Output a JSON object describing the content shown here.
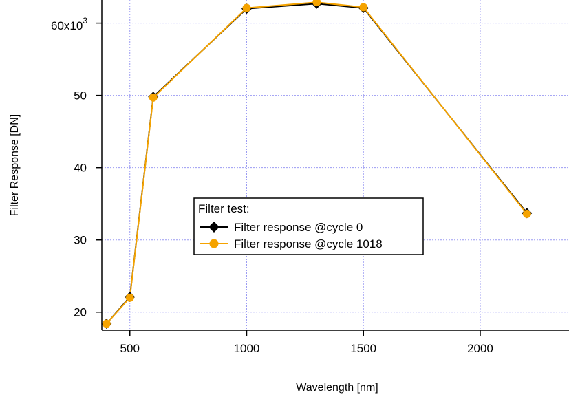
{
  "chart_data": {
    "type": "line",
    "xlabel": "Wavelength [nm]",
    "ylabel": "Filter Response [DN]",
    "xlim": [
      380,
      2380
    ],
    "ylim": [
      17.5,
      63.2
    ],
    "y_multiplier_label": "60x10",
    "y_multiplier_exponent": "3",
    "x_ticks": [
      {
        "value": 500,
        "label": "500"
      },
      {
        "value": 1000,
        "label": "1000"
      },
      {
        "value": 1500,
        "label": "1500"
      },
      {
        "value": 2000,
        "label": "2000"
      }
    ],
    "y_ticks": [
      {
        "value": 20,
        "label": "20"
      },
      {
        "value": 30,
        "label": "30"
      },
      {
        "value": 40,
        "label": "40"
      },
      {
        "value": 50,
        "label": "50"
      },
      {
        "value": 60,
        "label": ""
      }
    ],
    "grid": true,
    "legend": {
      "title": "Filter test:",
      "position": "center"
    },
    "series": [
      {
        "name": "Filter response @cycle 0",
        "color": "#000000",
        "marker": "diamond",
        "x": [
          400,
          500,
          600,
          1000,
          1300,
          1500,
          2200
        ],
        "y": [
          18.4,
          22.1,
          49.8,
          62.0,
          62.7,
          62.1,
          33.7
        ]
      },
      {
        "name": "Filter response @cycle 1018",
        "color": "#f5a300",
        "marker": "circle",
        "x": [
          400,
          500,
          600,
          1000,
          1300,
          1500,
          2200
        ],
        "y": [
          18.4,
          22.0,
          49.7,
          62.1,
          62.9,
          62.2,
          33.6
        ]
      }
    ]
  }
}
